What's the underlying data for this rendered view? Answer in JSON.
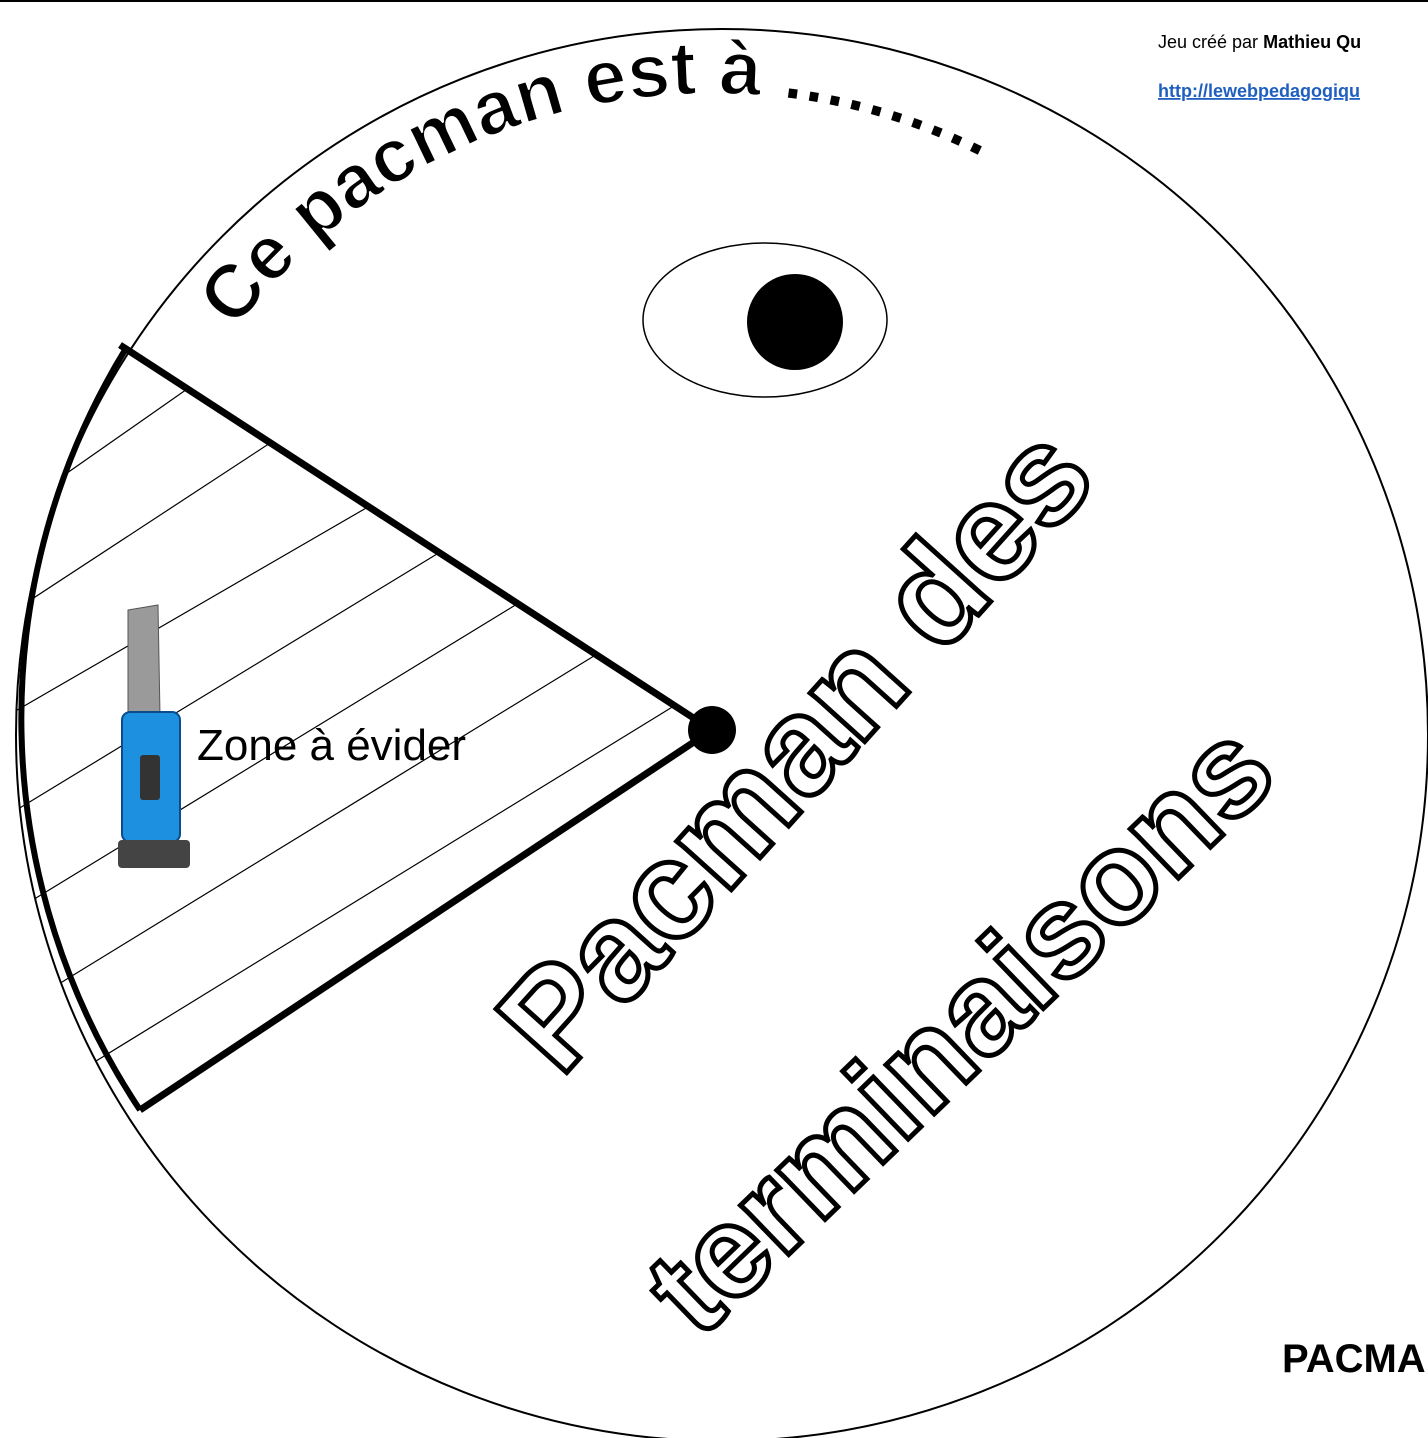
{
  "header": {
    "credit_prefix": "Jeu créé par",
    "credit_name": "Mathieu Qu",
    "link": "http://lewebpedagogiqu"
  },
  "pacman": {
    "arc_text": "Ce pacman est à ..........",
    "zone_label": "Zone à évider",
    "title_line1": "Pacman des",
    "title_line2": "terminaisons"
  },
  "footer": {
    "label": "PACMA"
  }
}
